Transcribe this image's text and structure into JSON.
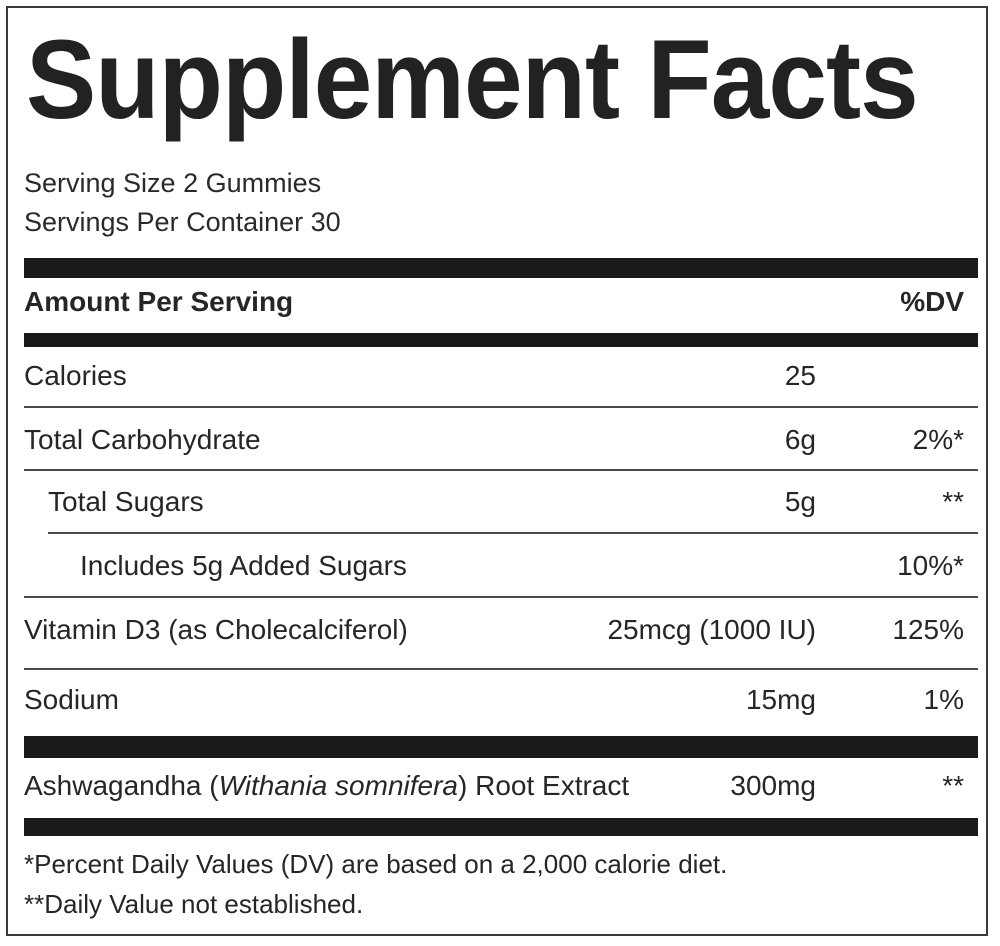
{
  "title": "Supplement Facts",
  "serving_size": "Serving Size 2 Gummies",
  "servings_per_container": "Servings Per Container 30",
  "header": {
    "amount_label": "Amount Per Serving",
    "dv_label": "%DV"
  },
  "rows": [
    {
      "name": "Calories",
      "amount": "25",
      "dv": ""
    },
    {
      "name": "Total Carbohydrate",
      "amount": "6g",
      "dv": "2%*"
    },
    {
      "name": "Total Sugars",
      "amount": "5g",
      "dv": "**"
    },
    {
      "name": "Includes 5g Added Sugars",
      "amount": "",
      "dv": "10%*"
    },
    {
      "name": "Vitamin D3 (as Cholecalciferol)",
      "amount": "25mcg (1000 IU)",
      "dv": "125%"
    },
    {
      "name": "Sodium",
      "amount": "15mg",
      "dv": "1%"
    }
  ],
  "extract": {
    "name_prefix": "Ashwagandha (",
    "name_italic": "Withania somnifera",
    "name_suffix": ") Root Extract",
    "amount": "300mg",
    "dv": "**"
  },
  "footnotes": [
    "*Percent Daily Values (DV) are based on a 2,000 calorie diet.",
    "**Daily Value not established."
  ]
}
